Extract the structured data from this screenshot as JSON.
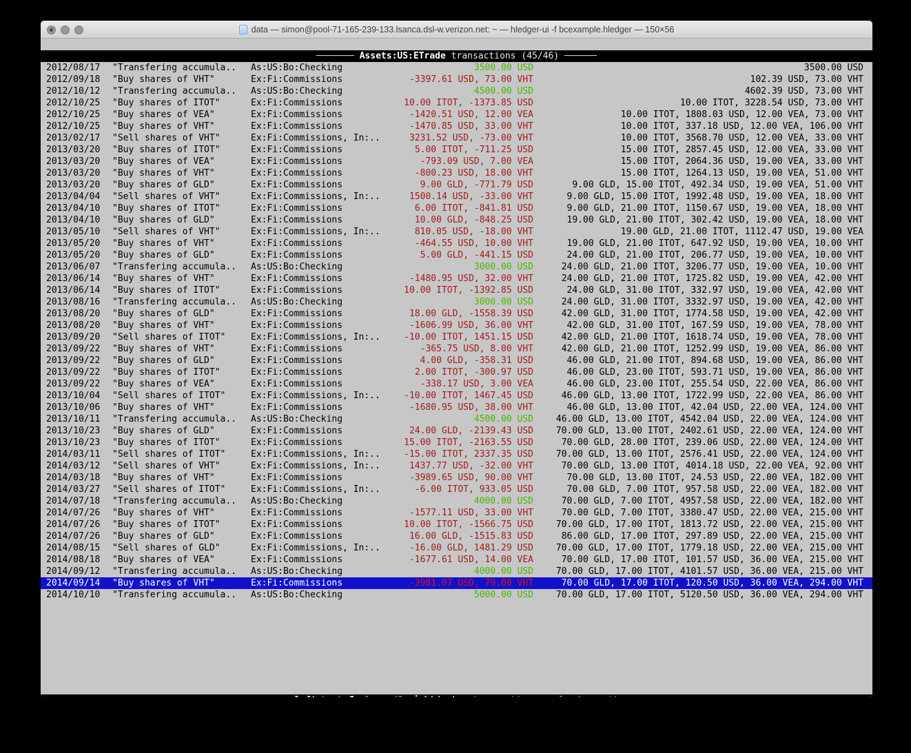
{
  "window": {
    "title": "data — simon@pool-71-165-239-133.lsanca.dsl-w.verizon.net: ~ — hledger-ui -f bcexample.hledger — 150×56"
  },
  "header": {
    "dash_left": "─────── ",
    "account": "Assets:US:ETrade",
    "subtitle": " transactions (45/46)",
    "dash_right": " ──────"
  },
  "footer": {
    "dash_left": "─── ",
    "dash_right": " ───",
    "items": [
      {
        "key": "left",
        "desc": ":back"
      },
      {
        "key": "C",
        "desc": ":cleared?"
      },
      {
        "key": "right/enter",
        "desc": ":transaction"
      },
      {
        "key": "g",
        "desc": ":reload"
      },
      {
        "key": "q",
        "desc": ":quit"
      }
    ]
  },
  "colors": {
    "terminal_background": "#c7c7c7",
    "negative_red": "#a11c1c",
    "positive_green": "#4db400",
    "selection_blue": "#1111cc"
  },
  "selected_index": 44,
  "rows": [
    {
      "date": "2012/08/17",
      "description": "\"Transfering accumula..",
      "account": "As:US:Bo:Checking",
      "change": "3500.00 USD",
      "change_color": "green",
      "balance": "3500.00 USD"
    },
    {
      "date": "2012/09/18",
      "description": "\"Buy shares of VHT\"",
      "account": "Ex:Fi:Commissions",
      "change": "-3397.61 USD, 73.00 VHT",
      "change_color": "red",
      "balance": "102.39 USD, 73.00 VHT"
    },
    {
      "date": "2012/10/12",
      "description": "\"Transfering accumula..",
      "account": "As:US:Bo:Checking",
      "change": "4500.00 USD",
      "change_color": "green",
      "balance": "4602.39 USD, 73.00 VHT"
    },
    {
      "date": "2012/10/25",
      "description": "\"Buy shares of ITOT\"",
      "account": "Ex:Fi:Commissions",
      "change": "10.00 ITOT, -1373.85 USD",
      "change_color": "red",
      "balance": "10.00 ITOT, 3228.54 USD, 73.00 VHT"
    },
    {
      "date": "2012/10/25",
      "description": "\"Buy shares of VEA\"",
      "account": "Ex:Fi:Commissions",
      "change": "-1420.51 USD, 12.00 VEA",
      "change_color": "red",
      "balance": "10.00 ITOT, 1808.03 USD, 12.00 VEA, 73.00 VHT"
    },
    {
      "date": "2012/10/25",
      "description": "\"Buy shares of VHT\"",
      "account": "Ex:Fi:Commissions",
      "change": "-1470.85 USD, 33.00 VHT",
      "change_color": "red",
      "balance": "10.00 ITOT, 337.18 USD, 12.00 VEA, 106.00 VHT"
    },
    {
      "date": "2013/02/17",
      "description": "\"Sell shares of VHT\"",
      "account": "Ex:Fi:Commissions, In:..",
      "change": "3231.52 USD, -73.00 VHT",
      "change_color": "red",
      "balance": "10.00 ITOT, 3568.70 USD, 12.00 VEA, 33.00 VHT"
    },
    {
      "date": "2013/03/20",
      "description": "\"Buy shares of ITOT\"",
      "account": "Ex:Fi:Commissions",
      "change": "5.00 ITOT, -711.25 USD",
      "change_color": "red",
      "balance": "15.00 ITOT, 2857.45 USD, 12.00 VEA, 33.00 VHT"
    },
    {
      "date": "2013/03/20",
      "description": "\"Buy shares of VEA\"",
      "account": "Ex:Fi:Commissions",
      "change": "-793.09 USD, 7.00 VEA",
      "change_color": "red",
      "balance": "15.00 ITOT, 2064.36 USD, 19.00 VEA, 33.00 VHT"
    },
    {
      "date": "2013/03/20",
      "description": "\"Buy shares of VHT\"",
      "account": "Ex:Fi:Commissions",
      "change": "-800.23 USD, 18.00 VHT",
      "change_color": "red",
      "balance": "15.00 ITOT, 1264.13 USD, 19.00 VEA, 51.00 VHT"
    },
    {
      "date": "2013/03/20",
      "description": "\"Buy shares of GLD\"",
      "account": "Ex:Fi:Commissions",
      "change": "9.00 GLD, -771.79 USD",
      "change_color": "red",
      "balance": "9.00 GLD, 15.00 ITOT, 492.34 USD, 19.00 VEA, 51.00 VHT"
    },
    {
      "date": "2013/04/04",
      "description": "\"Sell shares of VHT\"",
      "account": "Ex:Fi:Commissions, In:..",
      "change": "1500.14 USD, -33.00 VHT",
      "change_color": "red",
      "balance": "9.00 GLD, 15.00 ITOT, 1992.48 USD, 19.00 VEA, 18.00 VHT"
    },
    {
      "date": "2013/04/10",
      "description": "\"Buy shares of ITOT\"",
      "account": "Ex:Fi:Commissions",
      "change": "6.00 ITOT, -841.81 USD",
      "change_color": "red",
      "balance": "9.00 GLD, 21.00 ITOT, 1150.67 USD, 19.00 VEA, 18.00 VHT"
    },
    {
      "date": "2013/04/10",
      "description": "\"Buy shares of GLD\"",
      "account": "Ex:Fi:Commissions",
      "change": "10.00 GLD, -848.25 USD",
      "change_color": "red",
      "balance": "19.00 GLD, 21.00 ITOT, 302.42 USD, 19.00 VEA, 18.00 VHT"
    },
    {
      "date": "2013/05/10",
      "description": "\"Sell shares of VHT\"",
      "account": "Ex:Fi:Commissions, In:..",
      "change": "810.05 USD, -18.00 VHT",
      "change_color": "red",
      "balance": "19.00 GLD, 21.00 ITOT, 1112.47 USD, 19.00 VEA"
    },
    {
      "date": "2013/05/20",
      "description": "\"Buy shares of VHT\"",
      "account": "Ex:Fi:Commissions",
      "change": "-464.55 USD, 10.00 VHT",
      "change_color": "red",
      "balance": "19.00 GLD, 21.00 ITOT, 647.92 USD, 19.00 VEA, 10.00 VHT"
    },
    {
      "date": "2013/05/20",
      "description": "\"Buy shares of GLD\"",
      "account": "Ex:Fi:Commissions",
      "change": "5.00 GLD, -441.15 USD",
      "change_color": "red",
      "balance": "24.00 GLD, 21.00 ITOT, 206.77 USD, 19.00 VEA, 10.00 VHT"
    },
    {
      "date": "2013/06/07",
      "description": "\"Transfering accumula..",
      "account": "As:US:Bo:Checking",
      "change": "3000.00 USD",
      "change_color": "green",
      "balance": "24.00 GLD, 21.00 ITOT, 3206.77 USD, 19.00 VEA, 10.00 VHT"
    },
    {
      "date": "2013/06/14",
      "description": "\"Buy shares of VHT\"",
      "account": "Ex:Fi:Commissions",
      "change": "-1480.95 USD, 32.00 VHT",
      "change_color": "red",
      "balance": "24.00 GLD, 21.00 ITOT, 1725.82 USD, 19.00 VEA, 42.00 VHT"
    },
    {
      "date": "2013/06/14",
      "description": "\"Buy shares of ITOT\"",
      "account": "Ex:Fi:Commissions",
      "change": "10.00 ITOT, -1392.85 USD",
      "change_color": "red",
      "balance": "24.00 GLD, 31.00 ITOT, 332.97 USD, 19.00 VEA, 42.00 VHT"
    },
    {
      "date": "2013/08/16",
      "description": "\"Transfering accumula..",
      "account": "As:US:Bo:Checking",
      "change": "3000.00 USD",
      "change_color": "green",
      "balance": "24.00 GLD, 31.00 ITOT, 3332.97 USD, 19.00 VEA, 42.00 VHT"
    },
    {
      "date": "2013/08/20",
      "description": "\"Buy shares of GLD\"",
      "account": "Ex:Fi:Commissions",
      "change": "18.00 GLD, -1558.39 USD",
      "change_color": "red",
      "balance": "42.00 GLD, 31.00 ITOT, 1774.58 USD, 19.00 VEA, 42.00 VHT"
    },
    {
      "date": "2013/08/20",
      "description": "\"Buy shares of VHT\"",
      "account": "Ex:Fi:Commissions",
      "change": "-1606.99 USD, 36.00 VHT",
      "change_color": "red",
      "balance": "42.00 GLD, 31.00 ITOT, 167.59 USD, 19.00 VEA, 78.00 VHT"
    },
    {
      "date": "2013/09/20",
      "description": "\"Sell shares of ITOT\"",
      "account": "Ex:Fi:Commissions, In:..",
      "change": "-10.00 ITOT, 1451.15 USD",
      "change_color": "red",
      "balance": "42.00 GLD, 21.00 ITOT, 1618.74 USD, 19.00 VEA, 78.00 VHT"
    },
    {
      "date": "2013/09/22",
      "description": "\"Buy shares of VHT\"",
      "account": "Ex:Fi:Commissions",
      "change": "-365.75 USD, 8.00 VHT",
      "change_color": "red",
      "balance": "42.00 GLD, 21.00 ITOT, 1252.99 USD, 19.00 VEA, 86.00 VHT"
    },
    {
      "date": "2013/09/22",
      "description": "\"Buy shares of GLD\"",
      "account": "Ex:Fi:Commissions",
      "change": "4.00 GLD, -358.31 USD",
      "change_color": "red",
      "balance": "46.00 GLD, 21.00 ITOT, 894.68 USD, 19.00 VEA, 86.00 VHT"
    },
    {
      "date": "2013/09/22",
      "description": "\"Buy shares of ITOT\"",
      "account": "Ex:Fi:Commissions",
      "change": "2.00 ITOT, -300.97 USD",
      "change_color": "red",
      "balance": "46.00 GLD, 23.00 ITOT, 593.71 USD, 19.00 VEA, 86.00 VHT"
    },
    {
      "date": "2013/09/22",
      "description": "\"Buy shares of VEA\"",
      "account": "Ex:Fi:Commissions",
      "change": "-338.17 USD, 3.00 VEA",
      "change_color": "red",
      "balance": "46.00 GLD, 23.00 ITOT, 255.54 USD, 22.00 VEA, 86.00 VHT"
    },
    {
      "date": "2013/10/04",
      "description": "\"Sell shares of ITOT\"",
      "account": "Ex:Fi:Commissions, In:..",
      "change": "-10.00 ITOT, 1467.45 USD",
      "change_color": "red",
      "balance": "46.00 GLD, 13.00 ITOT, 1722.99 USD, 22.00 VEA, 86.00 VHT"
    },
    {
      "date": "2013/10/06",
      "description": "\"Buy shares of VHT\"",
      "account": "Ex:Fi:Commissions",
      "change": "-1680.95 USD, 38.00 VHT",
      "change_color": "red",
      "balance": "46.00 GLD, 13.00 ITOT, 42.04 USD, 22.00 VEA, 124.00 VHT"
    },
    {
      "date": "2013/10/11",
      "description": "\"Transfering accumula..",
      "account": "As:US:Bo:Checking",
      "change": "4500.00 USD",
      "change_color": "green",
      "balance": "46.00 GLD, 13.00 ITOT, 4542.04 USD, 22.00 VEA, 124.00 VHT"
    },
    {
      "date": "2013/10/23",
      "description": "\"Buy shares of GLD\"",
      "account": "Ex:Fi:Commissions",
      "change": "24.00 GLD, -2139.43 USD",
      "change_color": "red",
      "balance": "70.00 GLD, 13.00 ITOT, 2402.61 USD, 22.00 VEA, 124.00 VHT"
    },
    {
      "date": "2013/10/23",
      "description": "\"Buy shares of ITOT\"",
      "account": "Ex:Fi:Commissions",
      "change": "15.00 ITOT, -2163.55 USD",
      "change_color": "red",
      "balance": "70.00 GLD, 28.00 ITOT, 239.06 USD, 22.00 VEA, 124.00 VHT"
    },
    {
      "date": "2014/03/11",
      "description": "\"Sell shares of ITOT\"",
      "account": "Ex:Fi:Commissions, In:..",
      "change": "-15.00 ITOT, 2337.35 USD",
      "change_color": "red",
      "balance": "70.00 GLD, 13.00 ITOT, 2576.41 USD, 22.00 VEA, 124.00 VHT"
    },
    {
      "date": "2014/03/12",
      "description": "\"Sell shares of VHT\"",
      "account": "Ex:Fi:Commissions, In:..",
      "change": "1437.77 USD, -32.00 VHT",
      "change_color": "red",
      "balance": "70.00 GLD, 13.00 ITOT, 4014.18 USD, 22.00 VEA, 92.00 VHT"
    },
    {
      "date": "2014/03/18",
      "description": "\"Buy shares of VHT\"",
      "account": "Ex:Fi:Commissions",
      "change": "-3989.65 USD, 90.00 VHT",
      "change_color": "red",
      "balance": "70.00 GLD, 13.00 ITOT, 24.53 USD, 22.00 VEA, 182.00 VHT"
    },
    {
      "date": "2014/03/27",
      "description": "\"Sell shares of ITOT\"",
      "account": "Ex:Fi:Commissions, In:..",
      "change": "-6.00 ITOT, 933.05 USD",
      "change_color": "red",
      "balance": "70.00 GLD, 7.00 ITOT, 957.58 USD, 22.00 VEA, 182.00 VHT"
    },
    {
      "date": "2014/07/18",
      "description": "\"Transfering accumula..",
      "account": "As:US:Bo:Checking",
      "change": "4000.00 USD",
      "change_color": "green",
      "balance": "70.00 GLD, 7.00 ITOT, 4957.58 USD, 22.00 VEA, 182.00 VHT"
    },
    {
      "date": "2014/07/26",
      "description": "\"Buy shares of VHT\"",
      "account": "Ex:Fi:Commissions",
      "change": "-1577.11 USD, 33.00 VHT",
      "change_color": "red",
      "balance": "70.00 GLD, 7.00 ITOT, 3380.47 USD, 22.00 VEA, 215.00 VHT"
    },
    {
      "date": "2014/07/26",
      "description": "\"Buy shares of ITOT\"",
      "account": "Ex:Fi:Commissions",
      "change": "10.00 ITOT, -1566.75 USD",
      "change_color": "red",
      "balance": "70.00 GLD, 17.00 ITOT, 1813.72 USD, 22.00 VEA, 215.00 VHT"
    },
    {
      "date": "2014/07/26",
      "description": "\"Buy shares of GLD\"",
      "account": "Ex:Fi:Commissions",
      "change": "16.00 GLD, -1515.83 USD",
      "change_color": "red",
      "balance": "86.00 GLD, 17.00 ITOT, 297.89 USD, 22.00 VEA, 215.00 VHT"
    },
    {
      "date": "2014/08/15",
      "description": "\"Sell shares of GLD\"",
      "account": "Ex:Fi:Commissions, In:..",
      "change": "-16.00 GLD, 1481.29 USD",
      "change_color": "red",
      "balance": "70.00 GLD, 17.00 ITOT, 1779.18 USD, 22.00 VEA, 215.00 VHT"
    },
    {
      "date": "2014/08/18",
      "description": "\"Buy shares of VEA\"",
      "account": "Ex:Fi:Commissions",
      "change": "-1677.61 USD, 14.00 VEA",
      "change_color": "red",
      "balance": "70.00 GLD, 17.00 ITOT, 101.57 USD, 36.00 VEA, 215.00 VHT"
    },
    {
      "date": "2014/09/12",
      "description": "\"Transfering accumula..",
      "account": "As:US:Bo:Checking",
      "change": "4000.00 USD",
      "change_color": "green",
      "balance": "70.00 GLD, 17.00 ITOT, 4101.57 USD, 36.00 VEA, 215.00 VHT"
    },
    {
      "date": "2014/09/14",
      "description": "\"Buy shares of VHT\"",
      "account": "Ex:Fi:Commissions",
      "change": "-3981.07 USD, 79.00 VHT",
      "change_color": "red",
      "balance": "70.00 GLD, 17.00 ITOT, 120.50 USD, 36.00 VEA, 294.00 VHT"
    },
    {
      "date": "2014/10/10",
      "description": "\"Transfering accumula..",
      "account": "As:US:Bo:Checking",
      "change": "5000.00 USD",
      "change_color": "green",
      "balance": "70.00 GLD, 17.00 ITOT, 5120.50 USD, 36.00 VEA, 294.00 VHT"
    }
  ]
}
